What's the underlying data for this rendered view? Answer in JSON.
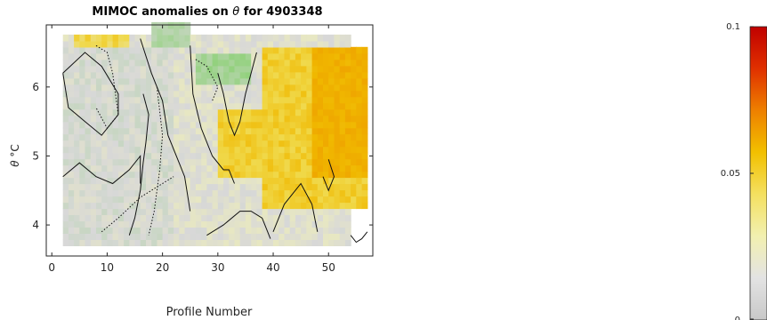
{
  "chart_data": {
    "type": "heatmap",
    "title_prefix": "MIMOC anomalies on ",
    "title_symbol": "θ",
    "title_suffix": "  for 4903348",
    "xlabel": "Profile Number",
    "ylabel_symbol": "θ",
    "ylabel_unit": "°C",
    "xlim": [
      -1,
      58
    ],
    "ylim": [
      3.55,
      6.9
    ],
    "xticks": [
      "0",
      "10",
      "20",
      "30",
      "40",
      "50"
    ],
    "yticks": [
      "4",
      "5",
      "6"
    ],
    "colorbar": {
      "range": [
        0,
        0.1
      ],
      "ticks": [
        "0",
        "0.05",
        "0.1"
      ],
      "stops": [
        "#c8c8c8",
        "#e3e3e3",
        "#f2f0b0",
        "#f4e060",
        "#f2c000",
        "#ee8000",
        "#e03000",
        "#c00000"
      ]
    },
    "colors": {
      "negative": "#88d070",
      "neutral": "#d8d8d8",
      "weak_positive": "#e9e9c0",
      "positive": "#f0d848",
      "strong_positive": "#f0b800",
      "strongest": "#eea000"
    },
    "regions": [
      {
        "name": "mid",
        "x": [
          2,
          54
        ],
        "ymin": 3.7,
        "ymax": 6.7,
        "value": 0.005
      },
      {
        "name": "left-gray",
        "x": [
          2,
          22
        ],
        "ymin": 3.7,
        "ymax": 6.5,
        "value": 0.0
      },
      {
        "name": "right-warm",
        "x": [
          38,
          57
        ],
        "ymin": 4.2,
        "ymax": 6.5,
        "value": 0.035
      },
      {
        "name": "hotspot",
        "x": [
          47,
          57
        ],
        "ymin": 4.6,
        "ymax": 6.5,
        "value": 0.05
      },
      {
        "name": "mid-warm",
        "x": [
          30,
          38
        ],
        "ymin": 4.6,
        "ymax": 5.6,
        "value": 0.035
      },
      {
        "name": "green-top",
        "x": [
          26,
          36
        ],
        "ymin": 5.95,
        "ymax": 6.45,
        "value": -0.02
      },
      {
        "name": "green-left",
        "x": [
          18,
          25
        ],
        "ymin": 6.5,
        "ymax": 6.9,
        "value": -0.015
      },
      {
        "name": "yellow-top-left",
        "x": [
          4,
          14
        ],
        "ymin": 6.5,
        "ymax": 6.7,
        "value": 0.03
      }
    ],
    "contours": [
      {
        "style": "solid",
        "x": [
          2,
          6,
          9,
          12,
          12,
          9,
          6,
          3,
          2
        ],
        "y": [
          6.2,
          6.5,
          6.3,
          5.9,
          5.6,
          5.3,
          5.5,
          5.7,
          6.2
        ]
      },
      {
        "style": "solid",
        "x": [
          2,
          5,
          8,
          11,
          14,
          16,
          16
        ],
        "y": [
          4.7,
          4.9,
          4.7,
          4.6,
          4.8,
          5.0,
          4.6
        ]
      },
      {
        "style": "dotted",
        "x": [
          8,
          10,
          11,
          12,
          10,
          8
        ],
        "y": [
          6.6,
          6.5,
          6.2,
          5.6,
          5.4,
          5.7
        ]
      },
      {
        "style": "solid",
        "x": [
          16,
          18,
          20,
          21,
          23,
          24,
          25
        ],
        "y": [
          6.7,
          6.2,
          5.8,
          5.3,
          4.9,
          4.7,
          4.2
        ]
      },
      {
        "style": "solid",
        "x": [
          14,
          15,
          16,
          16.5,
          17,
          17.5,
          16.5
        ],
        "y": [
          3.85,
          4.1,
          4.5,
          4.9,
          5.2,
          5.6,
          5.9
        ]
      },
      {
        "style": "dotted",
        "x": [
          19,
          20,
          19.5,
          18.5,
          17.5
        ],
        "y": [
          6.0,
          5.3,
          4.8,
          4.2,
          3.85
        ]
      },
      {
        "style": "solid",
        "x": [
          25,
          25.5,
          27,
          29,
          31,
          32,
          33
        ],
        "y": [
          6.6,
          5.9,
          5.4,
          5.0,
          4.8,
          4.8,
          4.6
        ]
      },
      {
        "style": "solid",
        "x": [
          30,
          31,
          32,
          33,
          34,
          35,
          36,
          37
        ],
        "y": [
          6.2,
          5.9,
          5.5,
          5.3,
          5.5,
          5.9,
          6.2,
          6.5
        ]
      },
      {
        "style": "solid",
        "x": [
          28,
          31,
          34,
          36,
          38,
          39.5
        ],
        "y": [
          3.85,
          4.0,
          4.2,
          4.2,
          4.1,
          3.8
        ]
      },
      {
        "style": "solid",
        "x": [
          40,
          42,
          45,
          47,
          48
        ],
        "y": [
          3.9,
          4.3,
          4.6,
          4.3,
          3.9
        ]
      },
      {
        "style": "dotted",
        "x": [
          9,
          12,
          16,
          22
        ],
        "y": [
          3.9,
          4.1,
          4.4,
          4.7
        ]
      },
      {
        "style": "dotted",
        "x": [
          26,
          28,
          30,
          29
        ],
        "y": [
          6.4,
          6.3,
          6.0,
          5.8
        ]
      },
      {
        "style": "solid",
        "x": [
          50,
          51,
          50,
          49
        ],
        "y": [
          4.95,
          4.7,
          4.5,
          4.7
        ]
      },
      {
        "style": "solid",
        "x": [
          54,
          55,
          56,
          57
        ],
        "y": [
          3.85,
          3.75,
          3.8,
          3.9
        ]
      }
    ]
  }
}
